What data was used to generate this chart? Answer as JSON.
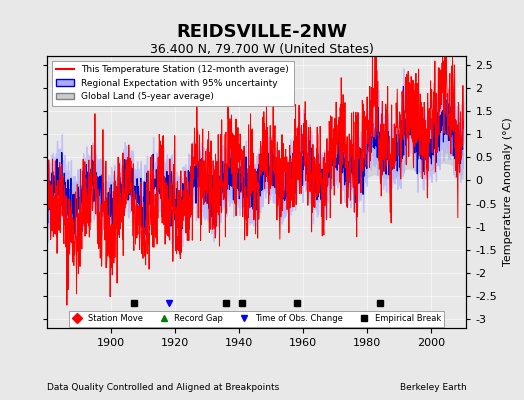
{
  "title": "REIDSVILLE-2NW",
  "subtitle": "36.400 N, 79.700 W (United States)",
  "ylabel": "Temperature Anomaly (°C)",
  "footer_left": "Data Quality Controlled and Aligned at Breakpoints",
  "footer_right": "Berkeley Earth",
  "xlim": [
    1880,
    2011
  ],
  "ylim": [
    -3.2,
    2.7
  ],
  "yticks": [
    -3,
    -2.5,
    -2,
    -1.5,
    -1,
    -0.5,
    0,
    0.5,
    1,
    1.5,
    2,
    2.5
  ],
  "xticks": [
    1900,
    1920,
    1940,
    1960,
    1980,
    2000
  ],
  "background_color": "#e8e8e8",
  "plot_background": "#e8e8e8",
  "regional_fill_color": "#aaaaff",
  "regional_line_color": "#0000cc",
  "station_line_color": "#ff0000",
  "global_land_color": "#cccccc",
  "empirical_breaks": [
    1907,
    1936,
    1941,
    1958,
    1984
  ],
  "time_obs_changes": [
    1918
  ],
  "station_moves": [],
  "record_gaps": [],
  "seed": 42
}
